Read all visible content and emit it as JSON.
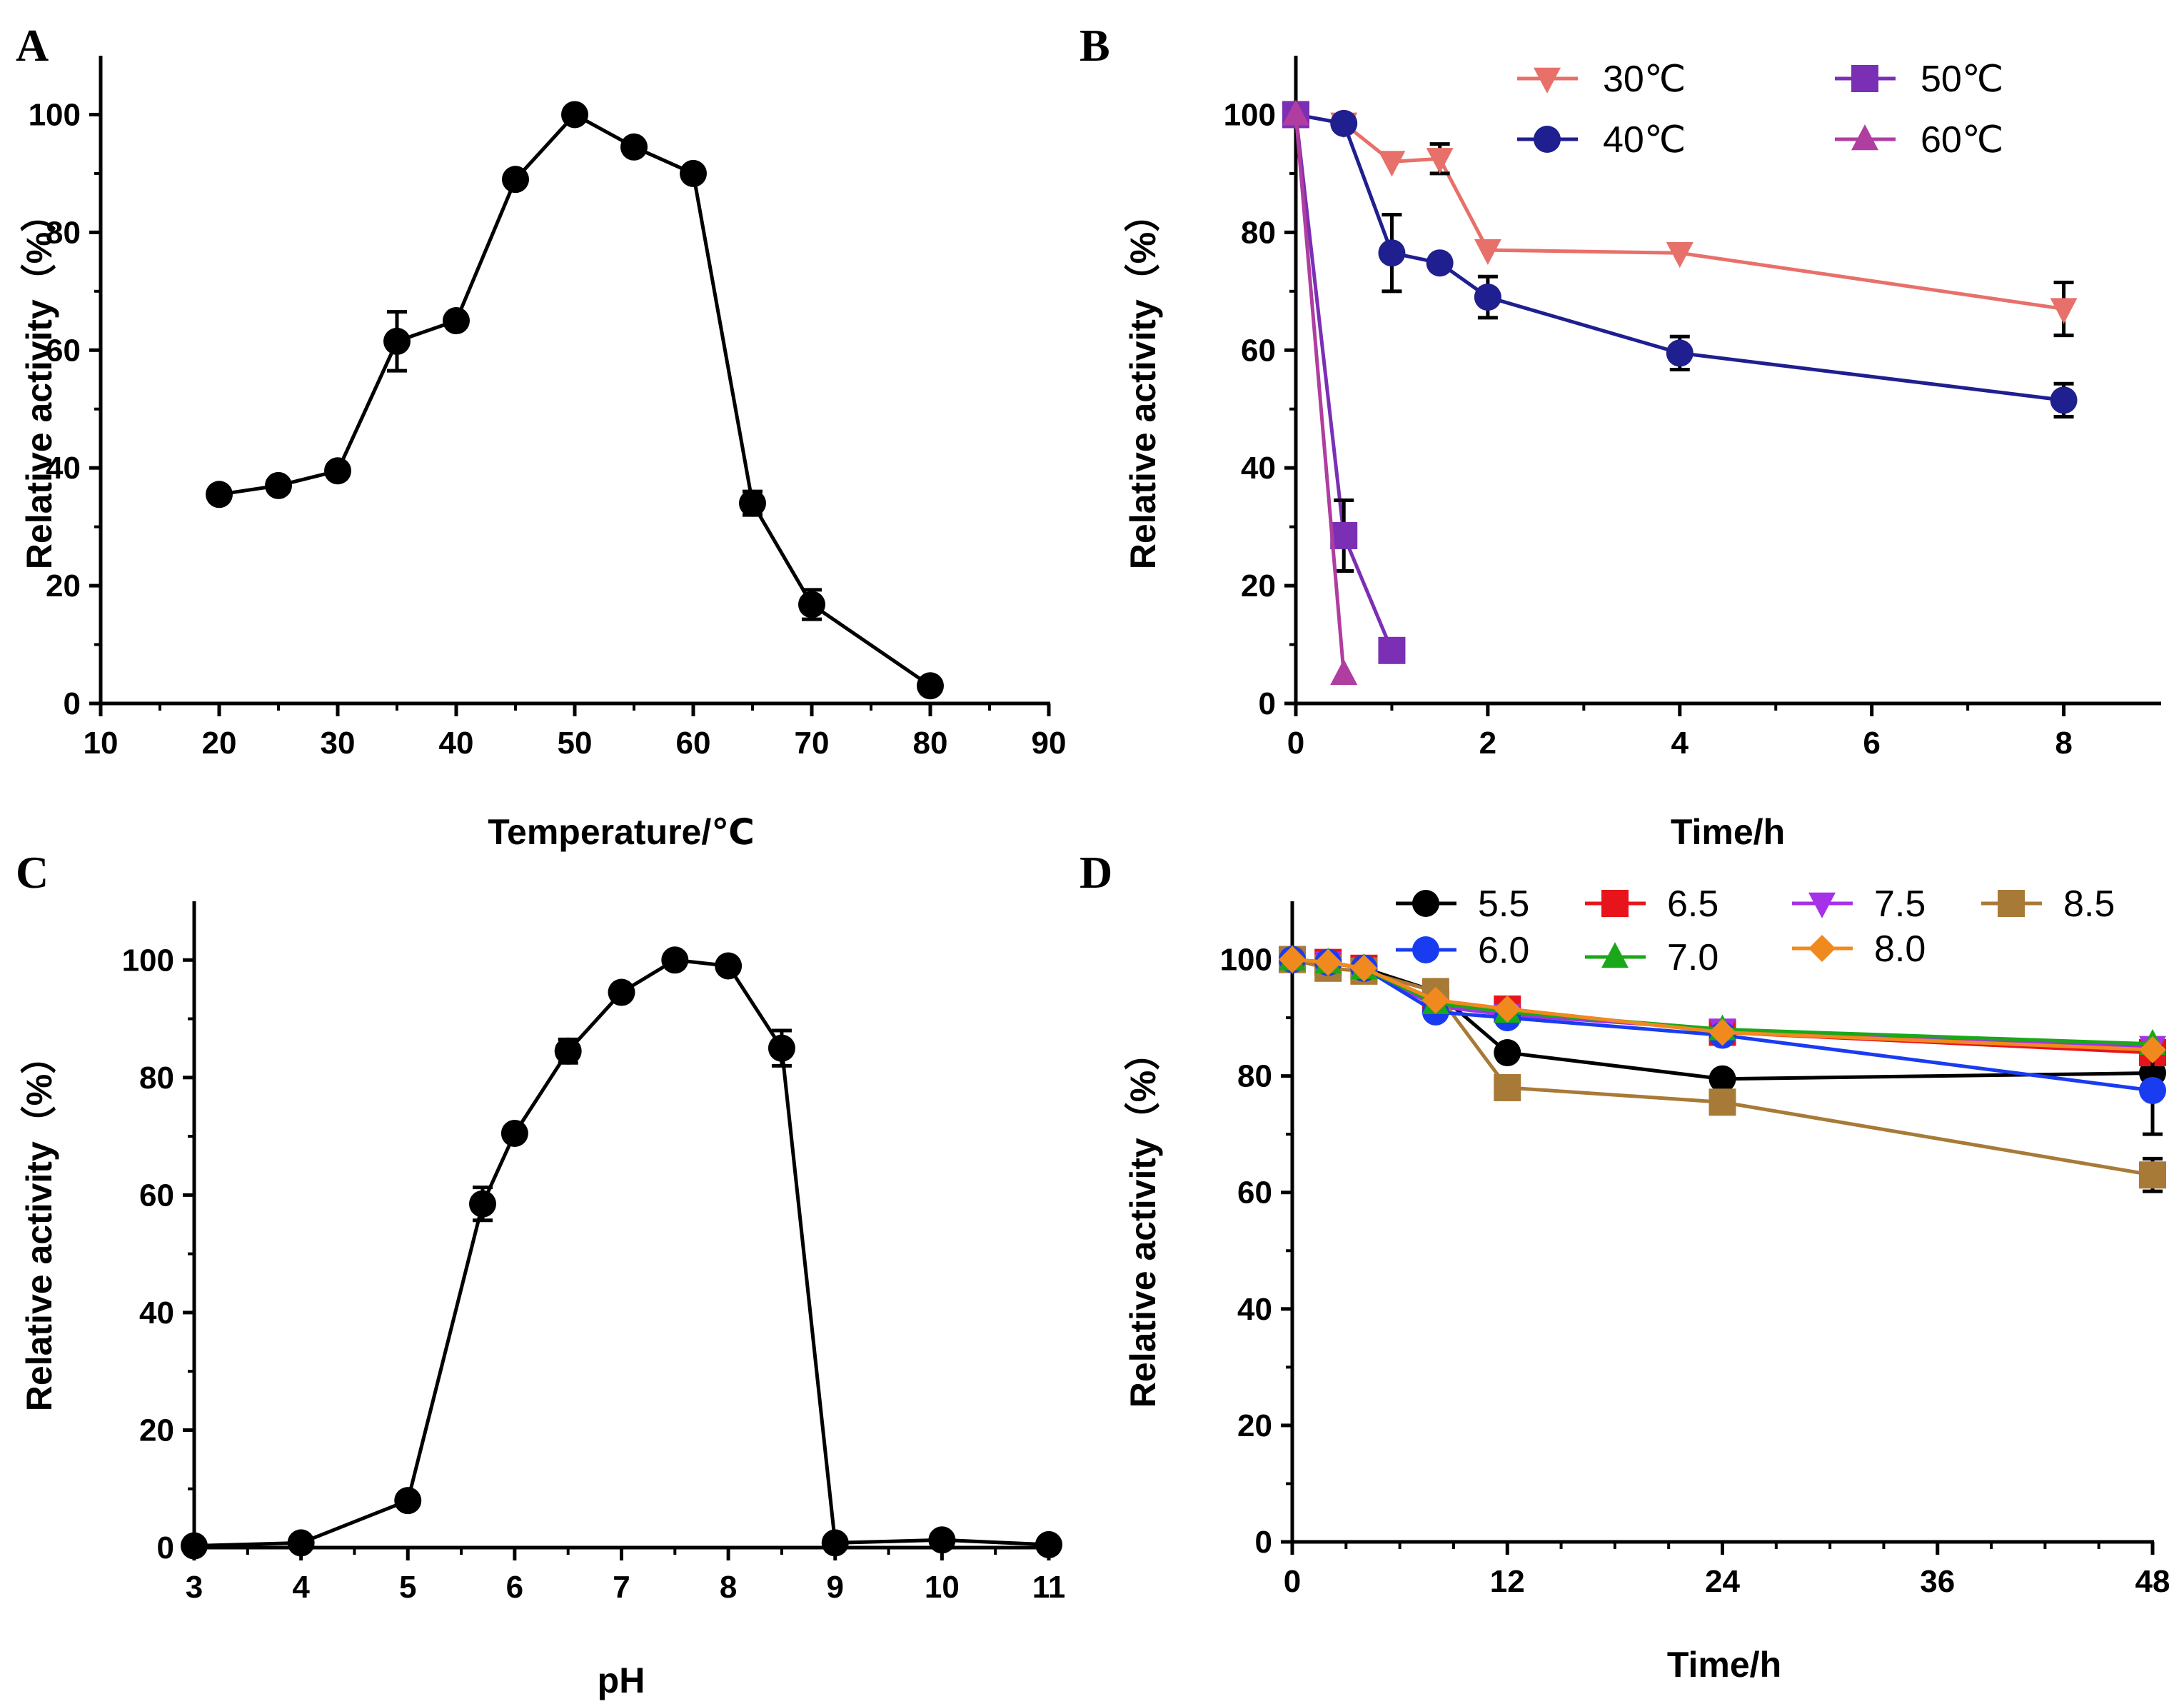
{
  "chart_data": [
    {
      "panel": "A",
      "type": "line",
      "xlabel": "Temperature/℃",
      "ylabel": "Relative activity（%）",
      "xlim": [
        10,
        90
      ],
      "ylim": [
        0,
        110
      ],
      "xticks": [
        10,
        20,
        30,
        40,
        50,
        60,
        70,
        80,
        90
      ],
      "yticks": [
        0,
        20,
        40,
        60,
        80,
        100
      ],
      "legend": [],
      "series": [
        {
          "name": "activity",
          "color": "#000000",
          "marker": "circle",
          "x": [
            20,
            25,
            30,
            35,
            40,
            45,
            50,
            55,
            60,
            65,
            70,
            80
          ],
          "values": [
            35.5,
            37,
            39.5,
            61.5,
            65,
            89,
            100,
            94.5,
            90,
            34,
            16.8,
            3
          ],
          "errors": [
            0,
            0,
            0,
            5,
            0,
            0,
            0,
            0,
            0,
            2,
            2.5,
            0
          ]
        }
      ]
    },
    {
      "panel": "B",
      "type": "line",
      "xlabel": "Time/h",
      "ylabel": "Relative activity（%）",
      "xlim": [
        0,
        9
      ],
      "ylim": [
        0,
        110
      ],
      "xticks": [
        0,
        2,
        4,
        6,
        8
      ],
      "yticks": [
        0,
        20,
        40,
        60,
        80,
        100
      ],
      "legend": [
        "30℃",
        "40℃",
        "50℃",
        "60℃"
      ],
      "series": [
        {
          "name": "30℃",
          "color": "#e8706a",
          "marker": "tri-down",
          "x": [
            0,
            0.5,
            1,
            1.5,
            2,
            4,
            8
          ],
          "values": [
            100,
            98.5,
            92,
            92.5,
            77,
            76.5,
            67
          ],
          "errors": [
            0,
            0,
            0,
            2.5,
            0,
            0,
            4.5
          ]
        },
        {
          "name": "40℃",
          "color": "#1f1f8f",
          "marker": "circle",
          "x": [
            0,
            0.5,
            1,
            1.5,
            2,
            4,
            8
          ],
          "values": [
            100,
            98.5,
            76.5,
            74.8,
            69,
            59.5,
            51.5
          ],
          "errors": [
            0,
            0,
            6.5,
            0,
            3.5,
            2.8,
            2.8
          ]
        },
        {
          "name": "50℃",
          "color": "#7b2fb5",
          "marker": "square",
          "x": [
            0,
            0.5,
            1
          ],
          "values": [
            100,
            28.5,
            9
          ],
          "errors": [
            0,
            6,
            1.5
          ]
        },
        {
          "name": "60℃",
          "color": "#b03da0",
          "marker": "tri-up",
          "x": [
            0,
            0.5
          ],
          "values": [
            100,
            5
          ],
          "errors": [
            0,
            0
          ]
        }
      ]
    },
    {
      "panel": "C",
      "type": "line",
      "xlabel": "pH",
      "ylabel": "Relative activity（%）",
      "xlim": [
        3,
        11
      ],
      "ylim": [
        0,
        110
      ],
      "xticks": [
        3,
        4,
        5,
        6,
        7,
        8,
        9,
        10,
        11
      ],
      "yticks": [
        0,
        20,
        40,
        60,
        80,
        100
      ],
      "legend": [],
      "series": [
        {
          "name": "activity",
          "color": "#000000",
          "marker": "circle",
          "x": [
            3,
            4,
            5,
            5.7,
            6,
            6.5,
            7,
            7.5,
            8,
            8.5,
            9,
            10,
            11
          ],
          "values": [
            0.3,
            0.8,
            8,
            58.5,
            70.5,
            84.5,
            94.5,
            100,
            99,
            85,
            0.8,
            1.3,
            0.5
          ],
          "errors": [
            0,
            0,
            0,
            2.8,
            0,
            2,
            0,
            0,
            0,
            3,
            0,
            0,
            0
          ]
        }
      ]
    },
    {
      "panel": "D",
      "type": "line",
      "xlabel": "Time/h",
      "ylabel": "Relative activity（%）",
      "xlim": [
        0,
        48
      ],
      "ylim": [
        0,
        110
      ],
      "xticks": [
        0,
        12,
        24,
        36,
        48
      ],
      "yticks": [
        0,
        20,
        40,
        60,
        80,
        100
      ],
      "legend": [
        "5.5",
        "6.5",
        "7.5",
        "8.5",
        "6.0",
        "7.0",
        "8.0"
      ],
      "series": [
        {
          "name": "5.5",
          "color": "#000000",
          "marker": "circle",
          "x": [
            0,
            2,
            4,
            8,
            12,
            24,
            48
          ],
          "values": [
            100,
            99.5,
            98.5,
            94.5,
            84,
            79.5,
            80.5
          ],
          "errors": [
            0,
            0,
            0,
            0,
            0,
            0,
            0
          ]
        },
        {
          "name": "6.5",
          "color": "#e8141b",
          "marker": "square",
          "x": [
            0,
            2,
            4,
            8,
            12,
            24,
            48
          ],
          "values": [
            100,
            99.5,
            98.5,
            93,
            91.5,
            87.5,
            84
          ],
          "errors": [
            0,
            0,
            0,
            0,
            0,
            0,
            0
          ]
        },
        {
          "name": "7.5",
          "color": "#a531e8",
          "marker": "tri-down",
          "x": [
            0,
            2,
            4,
            8,
            12,
            24,
            48
          ],
          "values": [
            100,
            99.5,
            98.5,
            92,
            90.5,
            88,
            85
          ],
          "errors": [
            0,
            0,
            0,
            0,
            0,
            0,
            0
          ]
        },
        {
          "name": "8.5",
          "color": "#a87a38",
          "marker": "square",
          "x": [
            0,
            2,
            4,
            8,
            12,
            24,
            48
          ],
          "values": [
            100,
            98.5,
            98,
            94.5,
            78,
            75.5,
            63
          ],
          "errors": [
            0,
            0,
            0,
            0,
            0,
            0,
            2.8
          ]
        },
        {
          "name": "6.0",
          "color": "#1a3cf0",
          "marker": "circle",
          "x": [
            0,
            2,
            4,
            8,
            12,
            24,
            48
          ],
          "values": [
            100,
            99.5,
            98.5,
            91,
            90,
            87,
            77.5
          ],
          "errors": [
            0,
            0,
            0,
            0,
            0,
            0,
            7.5
          ]
        },
        {
          "name": "7.0",
          "color": "#1aa81a",
          "marker": "tri-up",
          "x": [
            0,
            2,
            4,
            8,
            12,
            24,
            48
          ],
          "values": [
            100,
            99.5,
            98.5,
            92.5,
            91,
            88,
            85.5
          ],
          "errors": [
            0,
            0,
            0,
            0,
            0,
            0,
            0
          ]
        },
        {
          "name": "8.0",
          "color": "#f08a1f",
          "marker": "diamond",
          "x": [
            0,
            2,
            4,
            8,
            12,
            24,
            48
          ],
          "values": [
            100,
            99.5,
            98.5,
            93,
            91.5,
            87.5,
            84.5
          ],
          "errors": [
            0,
            0,
            0,
            0,
            0,
            0,
            0
          ]
        }
      ]
    }
  ]
}
